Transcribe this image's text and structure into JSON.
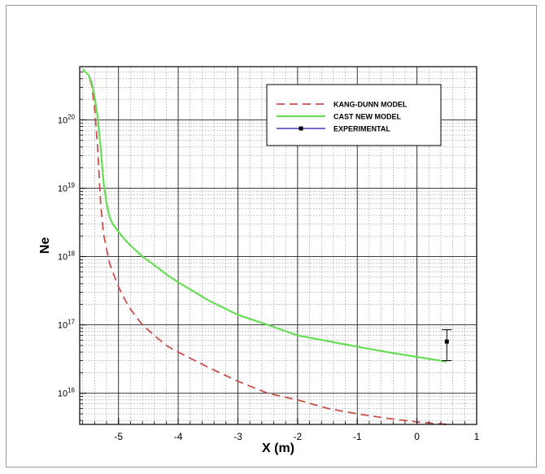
{
  "chart_data": {
    "type": "line",
    "xlabel": "X (m)",
    "ylabel": "Ne",
    "xlim": [
      -5.65,
      1
    ],
    "ylim": [
      3500000000000000.0,
      6e+20
    ],
    "yscale": "log",
    "grid": true,
    "x_ticks": [
      {
        "value": -5,
        "label": "-5"
      },
      {
        "value": -4,
        "label": "-4"
      },
      {
        "value": -3,
        "label": "-3"
      },
      {
        "value": -2,
        "label": "-2"
      },
      {
        "value": -1,
        "label": "-1"
      },
      {
        "value": 0,
        "label": "0"
      },
      {
        "value": 1,
        "label": "1"
      }
    ],
    "y_ticks": [
      {
        "value": 1e+16,
        "base": "10",
        "exp": "16"
      },
      {
        "value": 1e+17,
        "base": "10",
        "exp": "17"
      },
      {
        "value": 1e+18,
        "base": "10",
        "exp": "18"
      },
      {
        "value": 1e+19,
        "base": "10",
        "exp": "19"
      },
      {
        "value": 1e+20,
        "base": "10",
        "exp": "20"
      }
    ],
    "legend_position": "top-right",
    "series": [
      {
        "name": "KANG-DUNN MODEL",
        "color": "#c8504a",
        "style": "dashed",
        "x": [
          -5.6,
          -5.5,
          -5.45,
          -5.4,
          -5.35,
          -5.3,
          -5.25,
          -5.2,
          -5.15,
          -5.1,
          -5.0,
          -4.9,
          -4.8,
          -4.7,
          -4.6,
          -4.4,
          -4.2,
          -4.0,
          -3.5,
          -3.0,
          -2.5,
          -2.0,
          -1.5,
          -1.0,
          -0.5,
          0.0,
          0.5
        ],
        "y": [
          5.5e+20,
          4.5e+20,
          3.2e+20,
          1.5e+20,
          4e+19,
          6e+18,
          2.1e+18,
          1.3e+18,
          8e+17,
          6e+17,
          3.6e+17,
          2.4e+17,
          1.7e+17,
          1.3e+17,
          1e+17,
          7e+16,
          5e+16,
          4e+16,
          2.4e+16,
          1.5e+16,
          1e+16,
          8000000000000000.0,
          6000000000000000.0,
          5000000000000000.0,
          4300000000000000.0,
          3800000000000000.0,
          3500000000000000.0
        ]
      },
      {
        "name": "CAST NEW MODEL",
        "color": "#66dd55",
        "style": "solid",
        "x": [
          -5.6,
          -5.5,
          -5.45,
          -5.4,
          -5.35,
          -5.3,
          -5.25,
          -5.2,
          -5.15,
          -5.1,
          -5.0,
          -4.9,
          -4.8,
          -4.6,
          -4.4,
          -4.2,
          -4.0,
          -3.5,
          -3.0,
          -2.5,
          -2.0,
          -1.5,
          -1.0,
          -0.5,
          0.0,
          0.5
        ],
        "y": [
          5.5e+20,
          4.5e+20,
          3.5e+20,
          2.2e+20,
          1.1e+20,
          4e+19,
          1.2e+19,
          6e+18,
          3.8e+18,
          3e+18,
          2.3e+18,
          1.8e+18,
          1.45e+18,
          1e+18,
          7.5e+17,
          5.5e+17,
          4.2e+17,
          2.3e+17,
          1.4e+17,
          1e+17,
          7e+16,
          5.8e+16,
          4.8e+16,
          4e+16,
          3.4e+16,
          2.9e+16
        ]
      },
      {
        "name": "EXPERIMENTAL",
        "color": "#1a1aaa",
        "style": "marker",
        "points": [
          {
            "x": 0.5,
            "y": 5.7e+16,
            "y_low": 3e+16,
            "y_high": 8.5e+16
          }
        ]
      }
    ]
  }
}
